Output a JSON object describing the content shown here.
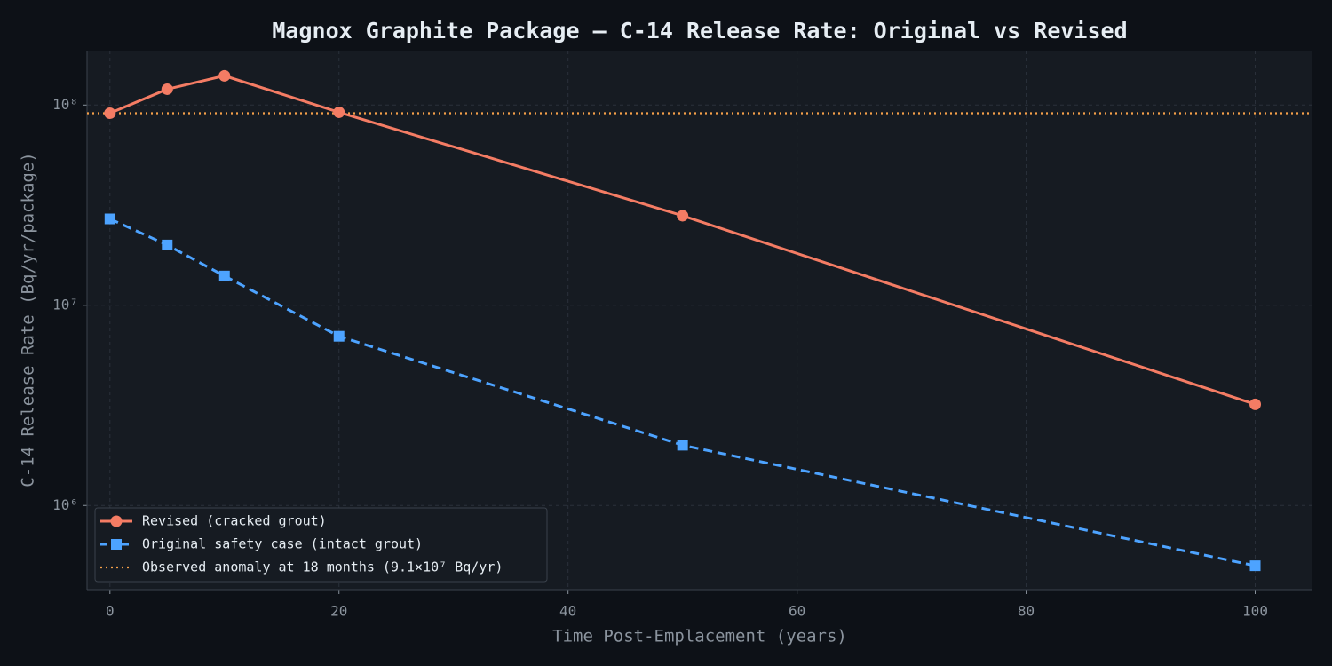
{
  "chart_data": {
    "type": "line",
    "title": "Magnox Graphite Package — C-14 Release Rate: Original vs Revised",
    "x_label": "Time Post-Emplacement (years)",
    "y_label": "C-14 Release Rate (Bq/yr/package)",
    "x": [
      0,
      5,
      10,
      20,
      50,
      100
    ],
    "series": [
      {
        "name": "Revised (cracked grout)",
        "color": "#f47c64",
        "marker": "circle",
        "dash": "solid",
        "values": [
          91000000,
          120000000,
          140000000,
          92000000,
          28000000,
          3200000
        ]
      },
      {
        "name": "Original safety case (intact grout)",
        "color": "#4da3ff",
        "marker": "square",
        "dash": "dashed",
        "values": [
          27000000,
          20000000,
          14000000,
          7000000,
          2000000,
          500000
        ]
      }
    ],
    "reference_lines": [
      {
        "name": "Observed anomaly at 18 months (9.1×10⁷ Bq/yr)",
        "value": 91000000,
        "color": "#f5a04a"
      }
    ],
    "xlim": [
      -2,
      105
    ],
    "xticks": [
      0,
      20,
      40,
      60,
      80,
      100
    ],
    "ylim": [
      380000,
      187000000
    ],
    "yticks": [
      {
        "value": 1000000,
        "label": "10⁶"
      },
      {
        "value": 10000000,
        "label": "10⁷"
      },
      {
        "value": 100000000,
        "label": "10⁸"
      }
    ],
    "log_y": true,
    "grid": true,
    "legend": "lower left"
  }
}
